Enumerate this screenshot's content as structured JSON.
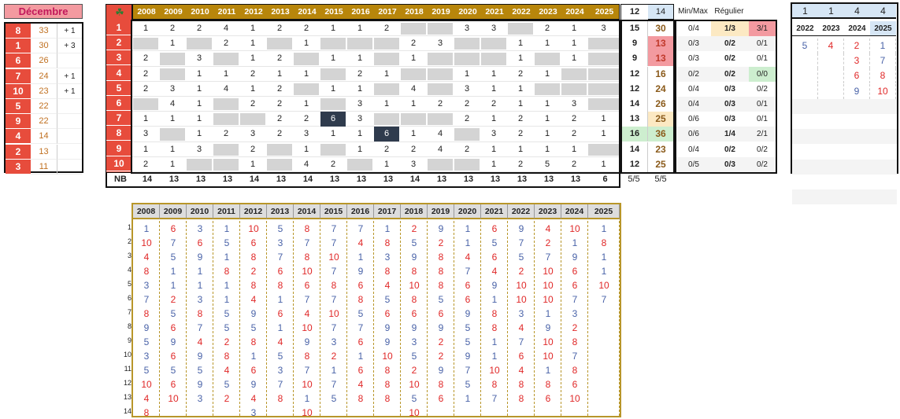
{
  "month": "Décembre",
  "colors": {
    "red": "#e74c3c",
    "gold": "#b8860b",
    "pink": "#f39aa0",
    "blue": "#d6e6f5",
    "green": "#cdeecf",
    "peach": "#fce9c3"
  },
  "left": {
    "rows": [
      {
        "num": "8",
        "val": "33",
        "delta": "+ 1"
      },
      {
        "num": "1",
        "val": "30",
        "delta": "+ 3"
      },
      {
        "num": "6",
        "val": "26",
        "delta": ""
      },
      {
        "num": "7",
        "val": "24",
        "delta": "+ 1"
      },
      {
        "num": "10",
        "val": "23",
        "delta": "+ 1"
      },
      {
        "num": "5",
        "val": "22",
        "delta": ""
      },
      {
        "num": "9",
        "val": "22",
        "delta": ""
      },
      {
        "num": "4",
        "val": "14",
        "delta": ""
      },
      {
        "num": "2",
        "val": "13",
        "delta": ""
      },
      {
        "num": "3",
        "val": "11",
        "delta": ""
      }
    ]
  },
  "grid": {
    "clover_icon": "clover-icon",
    "years": [
      "2008",
      "2009",
      "2010",
      "2011",
      "2012",
      "2013",
      "2014",
      "2015",
      "2016",
      "2017",
      "2018",
      "2019",
      "2020",
      "2021",
      "2022",
      "2023",
      "2024",
      "2025"
    ],
    "nb_label": "NB",
    "rows": [
      {
        "label": "1",
        "cells": [
          "1",
          "2",
          "2",
          "4",
          "1",
          "2",
          "2",
          "1",
          "1",
          "2",
          "",
          "",
          "3",
          "3",
          "",
          "2",
          "1",
          "3"
        ]
      },
      {
        "label": "2",
        "cells": [
          "",
          "1",
          "",
          "2",
          "1",
          "",
          "1",
          "",
          "",
          "",
          "2",
          "3",
          "",
          "",
          "1",
          "1",
          "1",
          ""
        ]
      },
      {
        "label": "3",
        "cells": [
          "2",
          "",
          "3",
          "",
          "1",
          "2",
          "",
          "1",
          "1",
          "",
          "1",
          "",
          "",
          "",
          "1",
          "",
          "1",
          ""
        ]
      },
      {
        "label": "4",
        "cells": [
          "2",
          "",
          "1",
          "1",
          "2",
          "1",
          "1",
          "",
          "2",
          "1",
          "",
          "",
          "1",
          "1",
          "2",
          "1",
          "",
          ""
        ]
      },
      {
        "label": "5",
        "cells": [
          "2",
          "3",
          "1",
          "4",
          "1",
          "2",
          "",
          "1",
          "1",
          "",
          "4",
          "",
          "3",
          "1",
          "1",
          "",
          "",
          ""
        ]
      },
      {
        "label": "6",
        "cells": [
          "",
          "4",
          "1",
          "",
          "2",
          "2",
          "1",
          "",
          "3",
          "1",
          "1",
          "2",
          "2",
          "2",
          "1",
          "1",
          "3",
          ""
        ]
      },
      {
        "label": "7",
        "cells": [
          "1",
          "1",
          "1",
          "",
          "",
          "2",
          "2",
          "6",
          "3",
          "",
          "",
          "",
          "2",
          "1",
          "2",
          "1",
          "2",
          "1"
        ]
      },
      {
        "label": "8",
        "cells": [
          "3",
          "",
          "1",
          "2",
          "3",
          "2",
          "3",
          "1",
          "1",
          "6",
          "1",
          "4",
          "",
          "3",
          "2",
          "1",
          "2",
          "1"
        ]
      },
      {
        "label": "9",
        "cells": [
          "1",
          "1",
          "3",
          "",
          "2",
          "",
          "1",
          "",
          "1",
          "2",
          "2",
          "4",
          "2",
          "1",
          "1",
          "1",
          "1",
          ""
        ]
      },
      {
        "label": "10",
        "cells": [
          "2",
          "1",
          "",
          "",
          "1",
          "",
          "4",
          "2",
          "",
          "1",
          "3",
          "",
          "",
          "1",
          "2",
          "5",
          "2",
          "1"
        ]
      }
    ],
    "nb": [
      "14",
      "13",
      "13",
      "13",
      "14",
      "13",
      "14",
      "13",
      "13",
      "13",
      "14",
      "13",
      "13",
      "13",
      "13",
      "13",
      "13",
      "6"
    ]
  },
  "stats": {
    "head": [
      "12",
      "14"
    ],
    "rows": [
      [
        "15",
        "30"
      ],
      [
        "9",
        "13"
      ],
      [
        "9",
        "13"
      ],
      [
        "12",
        "16"
      ],
      [
        "12",
        "24"
      ],
      [
        "14",
        "26"
      ],
      [
        "13",
        "25"
      ],
      [
        "16",
        "36"
      ],
      [
        "14",
        "23"
      ],
      [
        "12",
        "25"
      ]
    ],
    "foot": [
      "5/5",
      "5/5"
    ]
  },
  "minmax": {
    "headers": [
      "Min/Max",
      "Régulier",
      ""
    ],
    "rows": [
      [
        "0/4",
        "1/3",
        "3/1"
      ],
      [
        "0/3",
        "0/2",
        "0/1"
      ],
      [
        "0/3",
        "0/2",
        "0/1"
      ],
      [
        "0/2",
        "0/2",
        "0/0"
      ],
      [
        "0/4",
        "0/3",
        "0/2"
      ],
      [
        "0/4",
        "0/3",
        "0/1"
      ],
      [
        "0/6",
        "0/3",
        "0/1"
      ],
      [
        "0/6",
        "1/4",
        "2/1"
      ],
      [
        "0/4",
        "0/2",
        "0/2"
      ],
      [
        "0/5",
        "0/3",
        "0/2"
      ]
    ]
  },
  "right": {
    "top": [
      "1",
      "1",
      "4",
      "4"
    ],
    "years": [
      "2022",
      "2023",
      "2024",
      "2025"
    ],
    "rows": [
      [
        "5",
        "4",
        "2",
        "1"
      ],
      [
        "",
        "",
        "3",
        "7"
      ],
      [
        "",
        "",
        "6",
        "8"
      ],
      [
        "",
        "",
        "9",
        "10"
      ]
    ]
  },
  "bottom": {
    "years": [
      "2008",
      "2009",
      "2010",
      "2011",
      "2012",
      "2013",
      "2014",
      "2015",
      "2016",
      "2017",
      "2018",
      "2019",
      "2020",
      "2021",
      "2022",
      "2023",
      "2024",
      "2025"
    ],
    "row_labels": [
      "1",
      "2",
      "3",
      "4",
      "5",
      "6",
      "7",
      "8",
      "9",
      "10",
      "11",
      "12",
      "13",
      "14"
    ],
    "columns": [
      [
        "1",
        "10",
        "4",
        "8",
        "3",
        "7",
        "8",
        "9",
        "5",
        "3",
        "5",
        "10",
        "4",
        "8"
      ],
      [
        "6",
        "7",
        "5",
        "1",
        "1",
        "2",
        "5",
        "6",
        "9",
        "6",
        "5",
        "6",
        "10",
        ""
      ],
      [
        "3",
        "6",
        "9",
        "1",
        "1",
        "3",
        "8",
        "7",
        "4",
        "9",
        "5",
        "9",
        "3",
        ""
      ],
      [
        "1",
        "5",
        "1",
        "8",
        "1",
        "1",
        "5",
        "5",
        "2",
        "8",
        "4",
        "5",
        "2",
        ""
      ],
      [
        "10",
        "6",
        "8",
        "2",
        "8",
        "4",
        "9",
        "5",
        "8",
        "1",
        "6",
        "9",
        "4",
        "3"
      ],
      [
        "5",
        "3",
        "7",
        "6",
        "8",
        "1",
        "6",
        "1",
        "4",
        "5",
        "3",
        "7",
        "8",
        ""
      ],
      [
        "8",
        "7",
        "8",
        "10",
        "6",
        "7",
        "4",
        "10",
        "9",
        "8",
        "7",
        "10",
        "1",
        "10"
      ],
      [
        "7",
        "7",
        "10",
        "7",
        "8",
        "7",
        "10",
        "7",
        "3",
        "2",
        "1",
        "7",
        "5",
        ""
      ],
      [
        "7",
        "4",
        "1",
        "9",
        "6",
        "8",
        "5",
        "7",
        "6",
        "1",
        "6",
        "4",
        "8",
        ""
      ],
      [
        "1",
        "8",
        "3",
        "8",
        "4",
        "5",
        "6",
        "9",
        "9",
        "10",
        "8",
        "8",
        "8",
        ""
      ],
      [
        "2",
        "5",
        "9",
        "8",
        "10",
        "8",
        "6",
        "9",
        "3",
        "5",
        "2",
        "10",
        "5",
        "10"
      ],
      [
        "9",
        "2",
        "8",
        "8",
        "8",
        "5",
        "6",
        "9",
        "2",
        "2",
        "9",
        "8",
        "6",
        ""
      ],
      [
        "1",
        "1",
        "4",
        "7",
        "6",
        "6",
        "9",
        "5",
        "5",
        "9",
        "7",
        "5",
        "1",
        ""
      ],
      [
        "6",
        "5",
        "6",
        "4",
        "9",
        "1",
        "8",
        "8",
        "1",
        "1",
        "10",
        "8",
        "7",
        ""
      ],
      [
        "9",
        "7",
        "5",
        "2",
        "10",
        "10",
        "3",
        "4",
        "7",
        "6",
        "4",
        "8",
        "8",
        ""
      ],
      [
        "4",
        "2",
        "7",
        "10",
        "10",
        "10",
        "1",
        "9",
        "10",
        "10",
        "1",
        "8",
        "6",
        ""
      ],
      [
        "10",
        "1",
        "9",
        "6",
        "6",
        "7",
        "3",
        "2",
        "8",
        "7",
        "8",
        "6",
        "10",
        ""
      ],
      [
        "1",
        "8",
        "1",
        "1",
        "10",
        "7",
        "",
        "",
        "",
        "",
        "",
        "",
        "",
        ""
      ]
    ]
  }
}
